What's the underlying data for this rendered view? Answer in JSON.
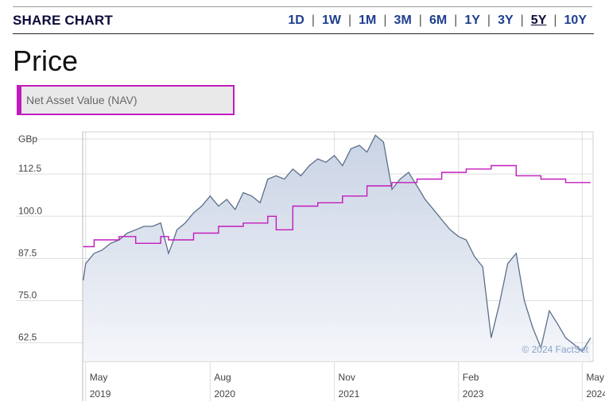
{
  "header": {
    "title": "SHARE CHART",
    "ranges": [
      "1D",
      "1W",
      "1M",
      "3M",
      "6M",
      "1Y",
      "3Y",
      "5Y",
      "10Y"
    ],
    "active_range": "5Y"
  },
  "price_title": "Price",
  "nav_toggle_label": "Net Asset Value (NAV)",
  "watermark": "© 2024 FactSet",
  "colors": {
    "price_line": "#5b6f8a",
    "price_fill_top": "#cdd6e6",
    "nav_line": "#c21bbd",
    "accent_blue": "#1f3f8f"
  },
  "chart_data": {
    "type": "line",
    "ylabel": "GBp",
    "ylim": [
      57,
      125
    ],
    "yticks": [
      62.5,
      75.0,
      87.5,
      100.0,
      112.5
    ],
    "ytick_labels": [
      "62.5",
      "75.0",
      "87.5",
      "100.0",
      "112.5"
    ],
    "xlim": [
      "2019-04-20",
      "2024-06-10"
    ],
    "xticks": [
      {
        "date": "2019-05-01",
        "month": "May",
        "year": "2019"
      },
      {
        "date": "2020-08-01",
        "month": "Aug",
        "year": "2020"
      },
      {
        "date": "2021-11-01",
        "month": "Nov",
        "year": "2021"
      },
      {
        "date": "2023-02-01",
        "month": "Feb",
        "year": "2023"
      },
      {
        "date": "2024-05-01",
        "month": "May",
        "year": "2024"
      }
    ],
    "grid": true,
    "series": [
      {
        "type": "area",
        "x": [
          "2019-04-22",
          "2019-05-01",
          "2019-06-01",
          "2019-07-01",
          "2019-08-01",
          "2019-09-01",
          "2019-10-01",
          "2019-11-01",
          "2019-12-01",
          "2020-01-01",
          "2020-02-01",
          "2020-03-01",
          "2020-03-15",
          "2020-04-01",
          "2020-05-01",
          "2020-06-01",
          "2020-07-01",
          "2020-08-01",
          "2020-09-01",
          "2020-10-01",
          "2020-11-01",
          "2020-12-01",
          "2021-01-01",
          "2021-02-01",
          "2021-03-01",
          "2021-04-01",
          "2021-05-01",
          "2021-06-01",
          "2021-07-01",
          "2021-08-01",
          "2021-09-01",
          "2021-10-01",
          "2021-11-01",
          "2021-12-01",
          "2022-01-01",
          "2022-02-01",
          "2022-03-01",
          "2022-04-01",
          "2022-05-01",
          "2022-06-01",
          "2022-07-01",
          "2022-08-01",
          "2022-09-01",
          "2022-10-01",
          "2022-11-01",
          "2022-12-01",
          "2023-01-01",
          "2023-02-01",
          "2023-03-01",
          "2023-04-01",
          "2023-05-01",
          "2023-06-01",
          "2023-07-01",
          "2023-08-01",
          "2023-09-01",
          "2023-10-01",
          "2023-11-01",
          "2023-12-01",
          "2024-01-01",
          "2024-02-01",
          "2024-03-01",
          "2024-04-01",
          "2024-05-01",
          "2024-06-01"
        ],
        "y": [
          81,
          86,
          89,
          90,
          92,
          93,
          95,
          96,
          97,
          97,
          98,
          89,
          92,
          96,
          98,
          101,
          103,
          106,
          103,
          105,
          102,
          107,
          106,
          104,
          111,
          112,
          111,
          114,
          112,
          115,
          117,
          116,
          118,
          115,
          120,
          121,
          119,
          124,
          122,
          108,
          111,
          113,
          109,
          105,
          102,
          99,
          96,
          94,
          93,
          88,
          85,
          64,
          74,
          86,
          89,
          75,
          67,
          61,
          72,
          68,
          64,
          62,
          60,
          64
        ]
      },
      {
        "type": "step",
        "x": [
          "2019-04-22",
          "2019-06-01",
          "2019-09-01",
          "2019-11-01",
          "2020-02-01",
          "2020-03-01",
          "2020-06-01",
          "2020-09-01",
          "2020-12-01",
          "2021-03-01",
          "2021-04-01",
          "2021-06-01",
          "2021-09-01",
          "2021-12-01",
          "2022-03-01",
          "2022-06-01",
          "2022-09-01",
          "2022-12-01",
          "2023-03-01",
          "2023-06-01",
          "2023-09-01",
          "2023-12-01",
          "2024-03-01",
          "2024-06-01"
        ],
        "y": [
          91,
          93,
          94,
          92,
          94,
          93,
          95,
          97,
          98,
          100,
          96,
          103,
          104,
          106,
          109,
          110,
          111,
          113,
          114,
          115,
          112,
          111,
          110,
          110
        ]
      }
    ]
  }
}
